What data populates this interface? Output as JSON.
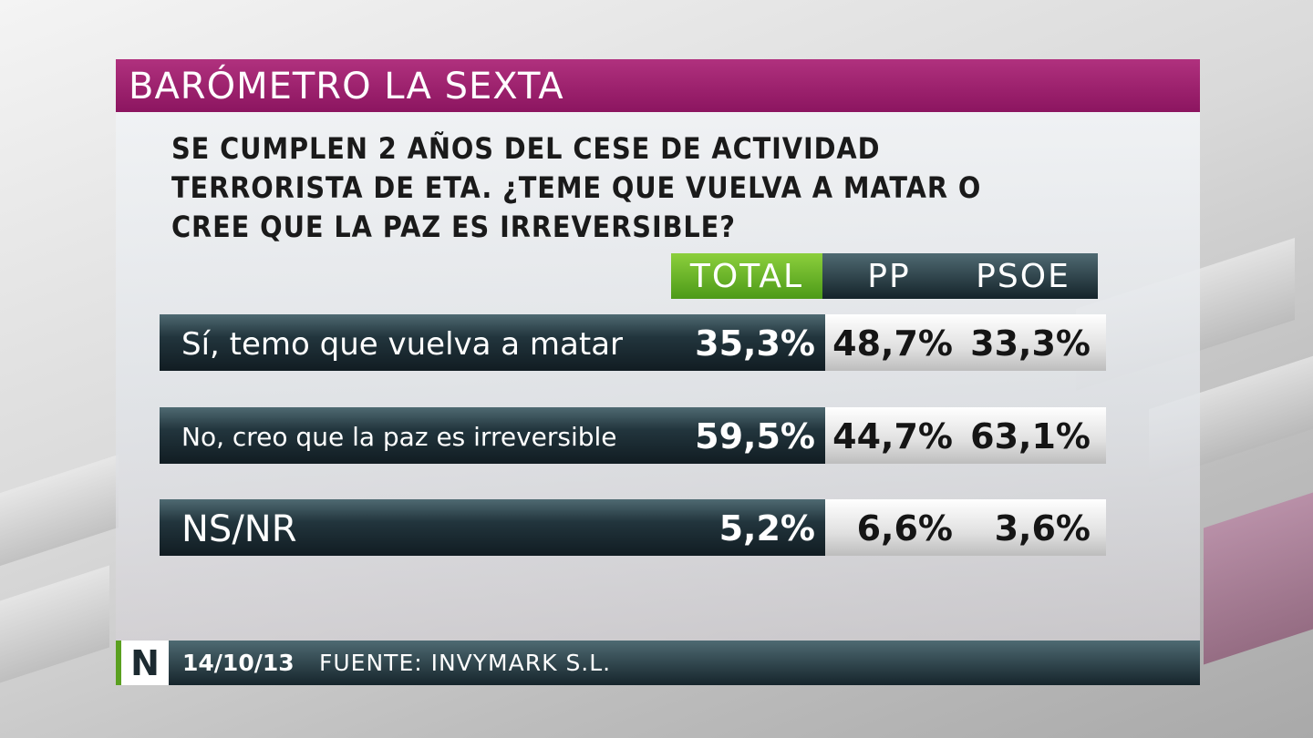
{
  "header": {
    "title": "BARÓMETRO LA SEXTA"
  },
  "question": [
    "SE CUMPLEN 2 AÑOS DEL CESE DE ACTIVIDAD",
    "TERRORISTA DE ETA. ¿TEME QUE VUELVA A MATAR O",
    "CREE QUE LA PAZ ES IRREVERSIBLE?"
  ],
  "table": {
    "columns": [
      "TOTAL",
      "PP",
      "PSOE"
    ],
    "rows": [
      {
        "label": "Sí, temo que vuelva a matar",
        "cells": [
          "35,3%",
          "48,7%",
          "33,3%"
        ]
      },
      {
        "label": "No, creo que la paz es irreversible",
        "cells": [
          "59,5%",
          "44,7%",
          "63,1%"
        ]
      },
      {
        "label": "NS/NR",
        "cells": [
          "5,2%",
          "6,6%",
          "3,6%"
        ]
      }
    ]
  },
  "footer": {
    "logo": "N",
    "date": "14/10/13",
    "source": "FUENTE: INVYMARK S.L."
  }
}
